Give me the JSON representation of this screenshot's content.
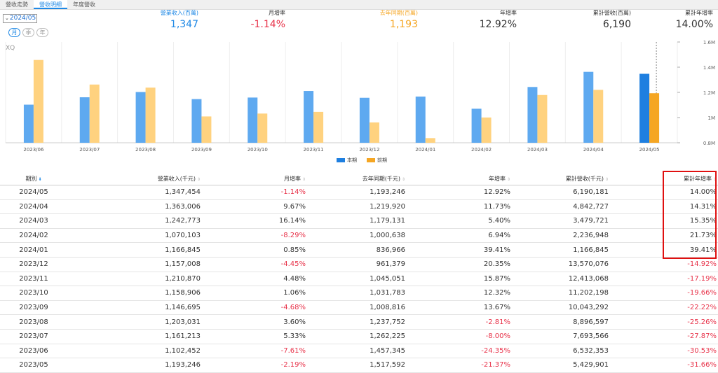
{
  "tabs": [
    "營收走勢",
    "營收明細",
    "年度營收"
  ],
  "active_tab": 1,
  "period_select": "2024/05",
  "segment_buttons": [
    "月",
    "季",
    "年"
  ],
  "metrics": [
    {
      "label": "營業收入(百萬)",
      "value": "1,347",
      "label_color": "#1e88e5",
      "value_color": "#1e88e5"
    },
    {
      "label": "月增率",
      "value": "-1.14%",
      "label_color": "#333333",
      "value_color": "#e8334a"
    },
    {
      "label": "去年同期(百萬)",
      "value": "1,193",
      "label_color": "#f5a623",
      "value_color": "#f5a623"
    },
    {
      "label": "年增率",
      "value": "12.92%",
      "label_color": "#333333",
      "value_color": "#333333"
    },
    {
      "label": "累計營收(百萬)",
      "value": "6,190",
      "label_color": "#333333",
      "value_color": "#333333"
    },
    {
      "label": "累計年增率",
      "value": "14.00%",
      "label_color": "#333333",
      "value_color": "#333333"
    }
  ],
  "watermark": "XQ",
  "chart_data": {
    "type": "bar",
    "categories": [
      "2023/06",
      "2023/07",
      "2023/08",
      "2023/09",
      "2023/10",
      "2023/11",
      "2023/12",
      "2024/01",
      "2024/02",
      "2024/03",
      "2024/04",
      "2024/05"
    ],
    "series": [
      {
        "name": "本期",
        "values": [
          1102452,
          1161213,
          1203031,
          1146695,
          1158906,
          1210870,
          1157008,
          1166845,
          1070103,
          1242773,
          1363006,
          1347454
        ],
        "color": "#5ea9f0"
      },
      {
        "name": "前期",
        "values": [
          1457345,
          1262225,
          1237752,
          1008816,
          1031783,
          1045051,
          961379,
          836966,
          1000638,
          1179131,
          1219920,
          1193246
        ],
        "color": "#ffd27f"
      }
    ],
    "highlight_colors": {
      "current": "#1e7fe0",
      "previous": "#f5a623"
    },
    "yticks": [
      "0.8M",
      "1M",
      "1.2M",
      "1.4M",
      "1.6M"
    ],
    "ylim": [
      800000,
      1600000
    ]
  },
  "table": {
    "headers": [
      "期別",
      "營業收入(千元)",
      "月增率",
      "去年同期(千元)",
      "年增率",
      "累計營收(千元)",
      "累計年增率"
    ],
    "rows": [
      [
        "2024/05",
        "1,347,454",
        "-1.14%",
        "1,193,246",
        "12.92%",
        "6,190,181",
        "14.00%"
      ],
      [
        "2024/04",
        "1,363,006",
        "9.67%",
        "1,219,920",
        "11.73%",
        "4,842,727",
        "14.31%"
      ],
      [
        "2024/03",
        "1,242,773",
        "16.14%",
        "1,179,131",
        "5.40%",
        "3,479,721",
        "15.35%"
      ],
      [
        "2024/02",
        "1,070,103",
        "-8.29%",
        "1,000,638",
        "6.94%",
        "2,236,948",
        "21.73%"
      ],
      [
        "2024/01",
        "1,166,845",
        "0.85%",
        "836,966",
        "39.41%",
        "1,166,845",
        "39.41%"
      ],
      [
        "2023/12",
        "1,157,008",
        "-4.45%",
        "961,379",
        "20.35%",
        "13,570,076",
        "-14.92%"
      ],
      [
        "2023/11",
        "1,210,870",
        "4.48%",
        "1,045,051",
        "15.87%",
        "12,413,068",
        "-17.19%"
      ],
      [
        "2023/10",
        "1,158,906",
        "1.06%",
        "1,031,783",
        "12.32%",
        "11,202,198",
        "-19.66%"
      ],
      [
        "2023/09",
        "1,146,695",
        "-4.68%",
        "1,008,816",
        "13.67%",
        "10,043,292",
        "-22.22%"
      ],
      [
        "2023/08",
        "1,203,031",
        "3.60%",
        "1,237,752",
        "-2.81%",
        "8,896,597",
        "-25.26%"
      ],
      [
        "2023/07",
        "1,161,213",
        "5.33%",
        "1,262,225",
        "-8.00%",
        "7,693,566",
        "-27.87%"
      ],
      [
        "2023/06",
        "1,102,452",
        "-7.61%",
        "1,457,345",
        "-24.35%",
        "6,532,353",
        "-30.53%"
      ],
      [
        "2023/05",
        "1,193,246",
        "-2.19%",
        "1,517,592",
        "-21.37%",
        "5,429,901",
        "-31.66%"
      ]
    ]
  }
}
